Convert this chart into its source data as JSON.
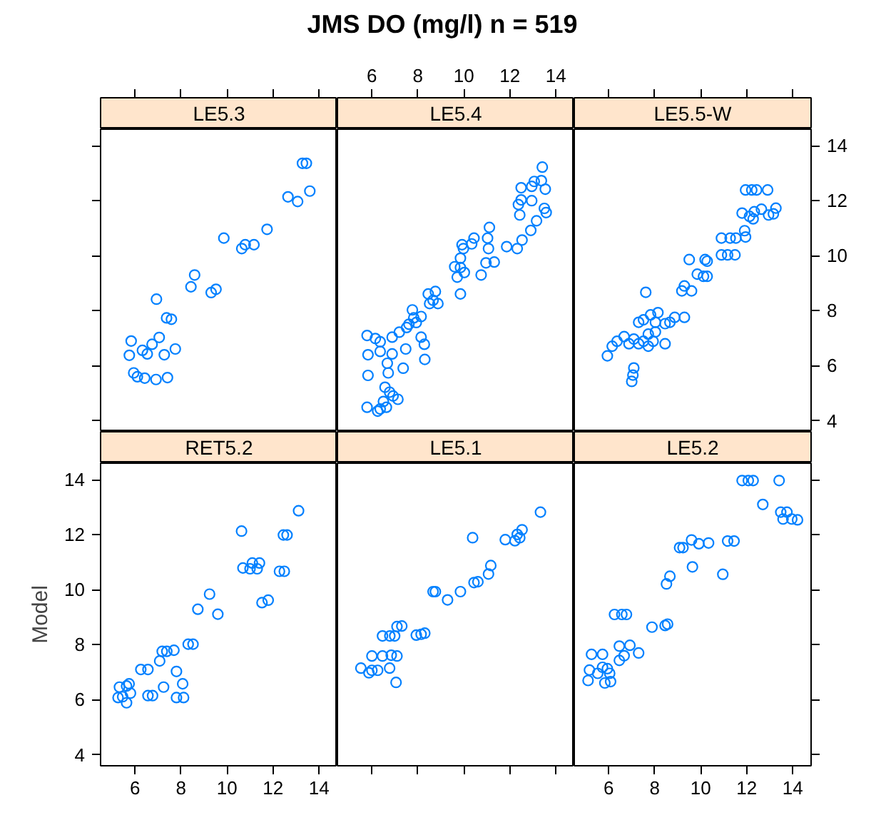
{
  "chart_data": [
    {
      "type": "scatter",
      "subtitle": "LE5.3",
      "color": "#0080ff",
      "marker": "circle",
      "tick_labels": false,
      "xlim": [
        4.5,
        14.8
      ],
      "ylim": [
        3.6,
        14.6
      ],
      "xticks": [
        6,
        8,
        10,
        12,
        14
      ],
      "yticks": [
        4,
        6,
        8,
        10,
        12,
        14
      ],
      "x": [
        13.28,
        13.45,
        12.65,
        13.07,
        13.6,
        11.74,
        9.86,
        10.64,
        10.79,
        11.17,
        8.59,
        8.43,
        9.31,
        9.52,
        6.93,
        7.37,
        7.58,
        5.83,
        7.05,
        6.74,
        6.32,
        6.53,
        7.27,
        7.75,
        5.75,
        5.94,
        6.1,
        6.42,
        6.91,
        7.41
      ],
      "values": [
        13.36,
        13.36,
        12.14,
        11.97,
        12.35,
        10.96,
        10.64,
        10.26,
        10.4,
        10.4,
        9.3,
        8.87,
        8.66,
        8.78,
        8.42,
        7.74,
        7.69,
        6.9,
        7.03,
        6.78,
        6.56,
        6.43,
        6.4,
        6.61,
        6.38,
        5.74,
        5.6,
        5.55,
        5.5,
        5.57
      ]
    },
    {
      "type": "scatter",
      "title": "JMS DO (mg/l) n = 519",
      "subtitle": "LE5.4",
      "color": "#0080ff",
      "marker": "circle",
      "tick_labels": "x",
      "xlim": [
        4.5,
        14.8
      ],
      "ylim": [
        3.6,
        14.6
      ],
      "xticks": [
        6,
        8,
        10,
        12,
        14
      ],
      "x": [
        13.41,
        13.06,
        13.37,
        12.95,
        12.49,
        13.54,
        12.49,
        12.37,
        12.43,
        12.95,
        13.5,
        13.58,
        13.16,
        12.91,
        12.53,
        12.32,
        11.86,
        11.11,
        11.03,
        11.07,
        10.44,
        10.34,
        9.92,
        9.98,
        9.85,
        9.85,
        9.6,
        9.71,
        9.85,
        10.02,
        10.75,
        10.96,
        11.32,
        8.45,
        8.76,
        8.66,
        8.51,
        8.87,
        7.76,
        7.82,
        7.61,
        8.14,
        7.93,
        7.51,
        7.19,
        6.88,
        8.14,
        7.47,
        8.28,
        8.3,
        7.36,
        5.79,
        6.15,
        6.36,
        5.83,
        6.36,
        6.88,
        6.67,
        5.83,
        6.71,
        6.57,
        6.77,
        6.92,
        7.13,
        6.5,
        5.79,
        6.36,
        6.63,
        6.25
      ],
      "values": [
        13.22,
        12.7,
        12.73,
        12.52,
        12.47,
        12.42,
        12.03,
        11.86,
        11.48,
        12.0,
        11.72,
        11.57,
        11.27,
        10.92,
        10.57,
        10.26,
        10.33,
        11.03,
        10.64,
        10.26,
        10.64,
        10.43,
        10.4,
        10.26,
        9.91,
        9.57,
        9.6,
        9.22,
        8.61,
        9.39,
        9.3,
        9.74,
        9.77,
        8.61,
        8.7,
        8.38,
        8.26,
        8.26,
        8.03,
        7.74,
        7.51,
        7.79,
        7.57,
        7.39,
        7.22,
        7.04,
        7.04,
        6.61,
        6.78,
        6.23,
        5.91,
        7.1,
        6.99,
        6.87,
        6.4,
        6.52,
        6.43,
        6.09,
        5.65,
        5.74,
        5.22,
        5.04,
        4.9,
        4.78,
        4.7,
        4.49,
        4.43,
        4.49,
        4.35
      ]
    },
    {
      "type": "scatter",
      "subtitle": "LE5.5-W",
      "color": "#0080ff",
      "marker": "circle",
      "tick_labels": "y",
      "xlim": [
        4.5,
        14.8
      ],
      "ylim": [
        3.6,
        14.6
      ],
      "xticks": [
        6,
        8,
        10,
        12,
        14
      ],
      "yticks": [
        4,
        6,
        8,
        10,
        12,
        14
      ],
      "x": [
        11.95,
        12.22,
        12.43,
        12.91,
        11.8,
        12.12,
        12.33,
        12.64,
        12.95,
        13.27,
        13.16,
        12.28,
        11.91,
        11.95,
        10.9,
        11.28,
        11.53,
        10.9,
        11.17,
        11.49,
        9.5,
        10.19,
        10.28,
        9.85,
        10.12,
        10.28,
        9.29,
        9.18,
        9.6,
        7.61,
        8.14,
        7.82,
        7.51,
        7.3,
        8.45,
        8.87,
        9.29,
        8.66,
        8.03,
        6.67,
        6.36,
        6.15,
        5.94,
        7.09,
        7.51,
        7.93,
        8.45,
        8.03,
        7.72,
        6.88,
        7.3,
        7.72,
        7.09,
        7.05,
        7.0
      ],
      "values": [
        12.39,
        12.39,
        12.39,
        12.39,
        11.55,
        11.43,
        11.6,
        11.69,
        11.48,
        11.73,
        11.52,
        11.34,
        10.91,
        10.68,
        10.64,
        10.64,
        10.64,
        10.03,
        10.03,
        10.03,
        9.86,
        9.86,
        9.8,
        9.33,
        9.25,
        9.25,
        8.9,
        8.72,
        8.72,
        8.67,
        7.93,
        7.85,
        7.67,
        7.58,
        7.53,
        7.76,
        7.76,
        7.58,
        7.58,
        7.06,
        6.89,
        6.71,
        6.36,
        6.97,
        6.89,
        6.89,
        6.8,
        7.23,
        7.15,
        6.8,
        6.8,
        6.71,
        5.92,
        5.66,
        5.43
      ]
    },
    {
      "type": "scatter",
      "subtitle": "RET5.2",
      "ylabel": "Model",
      "color": "#0080ff",
      "marker": "circle",
      "xlim": [
        4.5,
        14.8
      ],
      "ylim": [
        3.6,
        14.6
      ],
      "xticks": [
        6,
        8,
        10,
        12,
        14
      ],
      "yticks": [
        4,
        6,
        8,
        10,
        12,
        14
      ],
      "x": [
        13.11,
        10.63,
        12.45,
        12.61,
        11.1,
        11.41,
        11.31,
        11.0,
        10.69,
        12.28,
        12.49,
        11.52,
        11.79,
        9.24,
        8.73,
        9.6,
        8.31,
        8.52,
        7.18,
        7.38,
        7.69,
        7.07,
        6.25,
        6.56,
        7.8,
        8.07,
        7.24,
        6.56,
        6.76,
        7.8,
        8.11,
        5.32,
        5.63,
        5.74,
        5.8,
        5.26,
        5.46,
        5.63
      ],
      "values": [
        12.87,
        12.13,
        11.99,
        11.99,
        10.97,
        10.97,
        10.76,
        10.76,
        10.79,
        10.67,
        10.67,
        9.53,
        9.62,
        9.84,
        9.29,
        9.11,
        8.02,
        8.02,
        7.76,
        7.76,
        7.8,
        7.41,
        7.1,
        7.1,
        7.03,
        6.58,
        6.46,
        6.15,
        6.15,
        6.08,
        6.08,
        6.46,
        6.5,
        6.58,
        6.24,
        6.08,
        6.11,
        5.89
      ]
    },
    {
      "type": "scatter",
      "subtitle": "LE5.1",
      "color": "#0080ff",
      "marker": "circle",
      "tick_labels": false,
      "xlim": [
        4.5,
        14.8
      ],
      "ylim": [
        3.6,
        14.6
      ],
      "xticks": [
        6,
        8,
        10,
        12,
        14
      ],
      "x": [
        13.33,
        10.38,
        11.8,
        12.22,
        12.43,
        12.53,
        12.32,
        11.17,
        11.07,
        10.44,
        10.61,
        9.85,
        9.29,
        8.66,
        8.76,
        7.93,
        8.14,
        8.3,
        7.09,
        7.3,
        6.46,
        6.78,
        6.99,
        6.0,
        6.46,
        6.84,
        7.09,
        5.52,
        6.0,
        6.25,
        5.87,
        6.77,
        7.05
      ],
      "values": [
        12.82,
        11.89,
        11.82,
        11.78,
        11.89,
        12.18,
        12.01,
        10.88,
        10.57,
        10.26,
        10.29,
        9.93,
        9.63,
        9.93,
        9.93,
        8.35,
        8.38,
        8.42,
        8.66,
        8.68,
        8.32,
        8.32,
        8.32,
        7.59,
        7.59,
        7.62,
        7.59,
        7.15,
        7.07,
        7.07,
        6.98,
        7.15,
        6.63
      ]
    },
    {
      "type": "scatter",
      "subtitle": "LE5.2",
      "color": "#0080ff",
      "marker": "circle",
      "tick_labels": "x",
      "xlim": [
        4.5,
        14.8
      ],
      "ylim": [
        3.6,
        14.6
      ],
      "xticks": [
        6,
        8,
        10,
        12,
        14
      ],
      "yticks": [
        4,
        6,
        8,
        10,
        12,
        14
      ],
      "x": [
        11.8,
        12.07,
        12.28,
        13.41,
        12.7,
        13.48,
        13.75,
        13.58,
        13.96,
        14.21,
        11.17,
        11.45,
        9.6,
        9.92,
        10.34,
        9.08,
        9.23,
        9.64,
        10.96,
        8.66,
        8.51,
        6.25,
        6.57,
        6.77,
        7.88,
        8.45,
        8.56,
        6.46,
        6.92,
        7.3,
        6.67,
        6.46,
        5.25,
        5.73,
        5.16,
        5.52,
        5.73,
        5.94,
        6.04,
        5.1,
        5.83,
        6.08
      ],
      "values": [
        13.97,
        13.97,
        13.97,
        13.97,
        13.1,
        12.82,
        12.82,
        12.57,
        12.57,
        12.54,
        11.77,
        11.77,
        11.81,
        11.67,
        11.7,
        11.53,
        11.53,
        10.83,
        10.56,
        10.49,
        10.21,
        9.1,
        9.1,
        9.1,
        8.64,
        8.7,
        8.75,
        7.95,
        7.98,
        7.7,
        7.6,
        7.43,
        7.65,
        7.65,
        7.08,
        6.96,
        7.18,
        7.13,
        6.96,
        6.7,
        6.61,
        6.66
      ]
    }
  ]
}
